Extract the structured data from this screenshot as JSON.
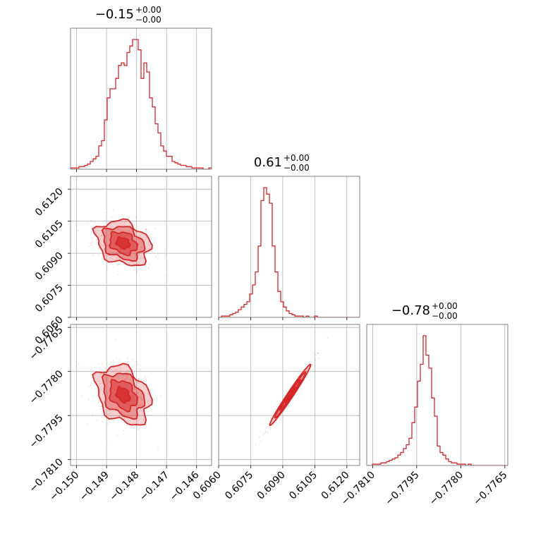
{
  "chart_data": {
    "type": "corner",
    "color": "#d62728",
    "grid": true,
    "parameters": [
      {
        "title": {
          "median": "−0.15",
          "plus": "+0.00",
          "minus": "−0.00"
        },
        "range": [
          -0.1502,
          -0.1455
        ],
        "ticks": [
          -0.15,
          -0.149,
          -0.148,
          -0.147,
          -0.146
        ],
        "tick_labels": [
          "−0.150",
          "−0.149",
          "−0.148",
          "−0.147",
          "−0.146"
        ]
      },
      {
        "title": {
          "median": "0.61",
          "plus": "+0.00",
          "minus": "−0.00"
        },
        "range": [
          0.606,
          0.6126
        ],
        "ticks": [
          0.606,
          0.6075,
          0.609,
          0.6105,
          0.612
        ],
        "tick_labels": [
          "0.6060",
          "0.6075",
          "0.6090",
          "0.6105",
          "0.6120"
        ]
      },
      {
        "title": {
          "median": "−0.78",
          "plus": "+0.00",
          "minus": "−0.00"
        },
        "range": [
          -0.7812,
          -0.7764
        ],
        "ticks": [
          -0.781,
          -0.7795,
          -0.778,
          -0.7765
        ],
        "tick_labels": [
          "−0.7810",
          "−0.7795",
          "−0.7780",
          "−0.7765"
        ]
      }
    ],
    "histograms": [
      {
        "param": 0,
        "bin_edges_start": -0.1502,
        "bin_width": 9.4e-05,
        "counts": [
          1,
          1,
          1,
          2,
          2,
          3,
          4,
          6,
          8,
          10,
          18,
          22,
          38,
          55,
          62,
          62,
          70,
          80,
          82,
          80,
          90,
          95,
          100,
          100,
          92,
          70,
          82,
          75,
          55,
          48,
          35,
          28,
          18,
          14,
          10,
          10,
          6,
          5,
          4,
          3,
          3,
          2,
          2,
          1,
          1,
          1,
          1,
          0,
          0,
          1
        ]
      },
      {
        "param": 1,
        "bin_edges_start": 0.606,
        "bin_width": 0.000132,
        "counts": [
          0,
          1,
          1,
          1,
          2,
          3,
          4,
          6,
          8,
          10,
          12,
          18,
          25,
          35,
          55,
          90,
          100,
          95,
          88,
          55,
          35,
          20,
          12,
          8,
          5,
          3,
          2,
          1,
          1,
          1,
          0,
          1,
          0,
          0,
          1,
          0,
          0,
          0,
          0,
          0,
          0,
          0,
          0,
          0,
          0,
          0,
          0,
          0,
          0,
          0
        ]
      },
      {
        "param": 2,
        "bin_edges_start": -0.7812,
        "bin_width": 9.6e-05,
        "counts": [
          0,
          0,
          1,
          1,
          1,
          2,
          2,
          3,
          4,
          5,
          6,
          8,
          10,
          13,
          16,
          21,
          33,
          45,
          65,
          78,
          100,
          85,
          75,
          52,
          38,
          15,
          10,
          8,
          5,
          3,
          2,
          2,
          1,
          1,
          1,
          0,
          1,
          0,
          0,
          0,
          0,
          0,
          0,
          0,
          0,
          0,
          0,
          0,
          0,
          0
        ]
      }
    ],
    "pairs": [
      {
        "x": 0,
        "y": 1,
        "center": [
          -0.14845,
          0.60948
        ],
        "spread": [
          0.00045,
          0.00052
        ],
        "correlation": -0.25
      },
      {
        "x": 0,
        "y": 2,
        "center": [
          -0.14845,
          -0.7788
        ],
        "spread": [
          0.00045,
          0.0005
        ],
        "correlation": -0.3
      },
      {
        "x": 1,
        "y": 2,
        "center": [
          0.60935,
          -0.7788
        ],
        "spread": [
          0.00048,
          0.00052
        ],
        "correlation": 0.985
      }
    ]
  }
}
